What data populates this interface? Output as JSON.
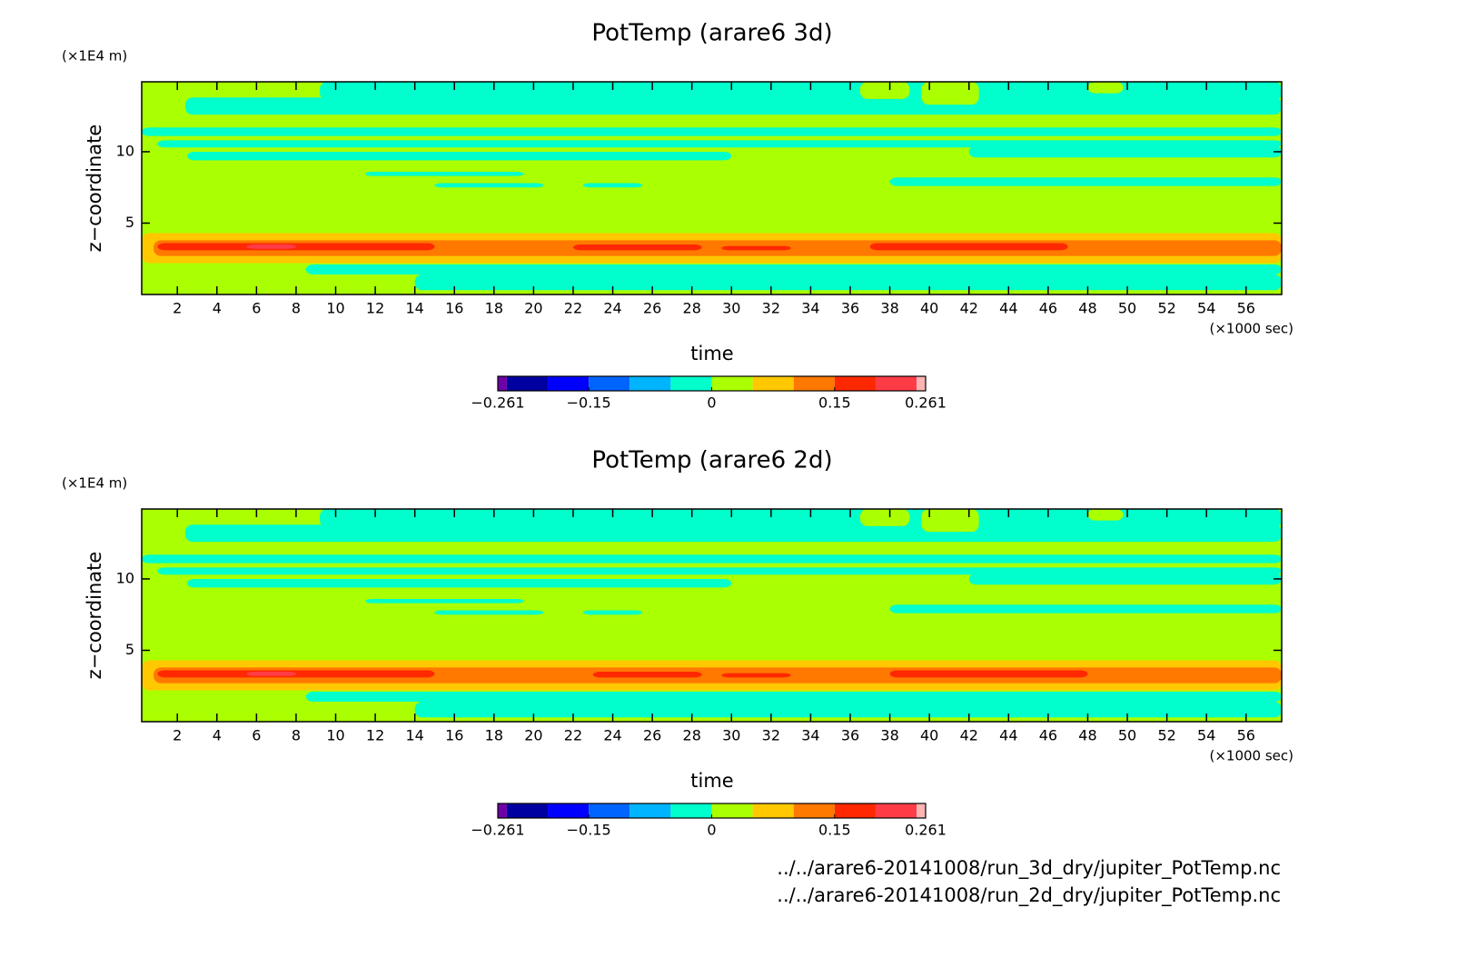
{
  "chart_data": [
    {
      "type": "contour",
      "title": "PotTemp (arare6 3d)",
      "x_label": "time",
      "y_label": "z−coordinate",
      "x_unit": "(×1000 sec)",
      "y_unit": "(×1E4 m)",
      "xlim": [
        0.2,
        57.8
      ],
      "ylim": [
        0,
        14.9
      ],
      "xticks": [
        2,
        4,
        6,
        8,
        10,
        12,
        14,
        16,
        18,
        20,
        22,
        24,
        26,
        28,
        30,
        32,
        34,
        36,
        38,
        40,
        42,
        44,
        46,
        48,
        50,
        52,
        54,
        56
      ],
      "yticks": [
        5,
        10
      ],
      "background_value": 0.025,
      "colorbar": {
        "bounds": [
          -0.261,
          -0.25,
          -0.2,
          -0.15,
          -0.1,
          -0.05,
          0,
          0.05,
          0.1,
          0.15,
          0.2,
          0.25,
          0.261
        ],
        "colors": [
          "#7000a8",
          "#0000a0",
          "#0000ff",
          "#0064ff",
          "#00b4ff",
          "#00ffcc",
          "#aaff00",
          "#ffc800",
          "#ff7800",
          "#ff2800",
          "#ff3c46",
          "#ffb4b4"
        ],
        "ticks": [
          {
            "value": -0.261,
            "label": "−0.261"
          },
          {
            "value": -0.15,
            "label": "−0.15"
          },
          0,
          0.15,
          0.261
        ]
      },
      "regions": [
        {
          "x": [
            2.4,
            57.8
          ],
          "y": [
            12.6,
            13.8
          ],
          "value": -0.025
        },
        {
          "x": [
            9.2,
            57.8
          ],
          "y": [
            13.6,
            14.9
          ],
          "value": -0.025
        },
        {
          "x": [
            36.5,
            39
          ],
          "y": [
            13.7,
            14.9
          ],
          "value": 0.025
        },
        {
          "x": [
            39.6,
            42.5
          ],
          "y": [
            13.3,
            14.9
          ],
          "value": 0.025
        },
        {
          "x": [
            48,
            49.8
          ],
          "y": [
            14.1,
            14.9
          ],
          "value": 0.025
        },
        {
          "x": [
            0.2,
            57.8
          ],
          "y": [
            11.1,
            11.7
          ],
          "value": -0.025
        },
        {
          "x": [
            1,
            57.8
          ],
          "y": [
            10.3,
            10.8
          ],
          "value": -0.025
        },
        {
          "x": [
            2.5,
            30
          ],
          "y": [
            9.4,
            10
          ],
          "value": -0.025
        },
        {
          "x": [
            42,
            57.8
          ],
          "y": [
            9.6,
            10.4
          ],
          "value": -0.025
        },
        {
          "x": [
            11.5,
            19.5
          ],
          "y": [
            8.3,
            8.6
          ],
          "value": -0.025
        },
        {
          "x": [
            15,
            20.5
          ],
          "y": [
            7.5,
            7.8
          ],
          "value": -0.025
        },
        {
          "x": [
            22.5,
            25.5
          ],
          "y": [
            7.5,
            7.8
          ],
          "value": -0.025
        },
        {
          "x": [
            38,
            57.8
          ],
          "y": [
            7.6,
            8.2
          ],
          "value": -0.025
        },
        {
          "x": [
            0.2,
            57.8
          ],
          "y": [
            2.2,
            4.3
          ],
          "value": 0.075
        },
        {
          "x": [
            0.8,
            57.8
          ],
          "y": [
            2.7,
            3.8
          ],
          "value": 0.125
        },
        {
          "x": [
            1,
            15
          ],
          "y": [
            3.1,
            3.6
          ],
          "value": 0.175
        },
        {
          "x": [
            22,
            28.5
          ],
          "y": [
            3.1,
            3.5
          ],
          "value": 0.175
        },
        {
          "x": [
            29.5,
            33
          ],
          "y": [
            3.1,
            3.4
          ],
          "value": 0.175
        },
        {
          "x": [
            37,
            47
          ],
          "y": [
            3.1,
            3.6
          ],
          "value": 0.175
        },
        {
          "x": [
            5.5,
            8
          ],
          "y": [
            3.2,
            3.5
          ],
          "value": 0.225
        },
        {
          "x": [
            8.5,
            57.8
          ],
          "y": [
            1.4,
            2.1
          ],
          "value": -0.025
        },
        {
          "x": [
            14,
            57.8
          ],
          "y": [
            0.3,
            1.4
          ],
          "value": -0.025
        }
      ]
    },
    {
      "type": "contour",
      "title": "PotTemp (arare6 2d)",
      "x_label": "time",
      "y_label": "z−coordinate",
      "x_unit": "(×1000 sec)",
      "y_unit": "(×1E4 m)",
      "xlim": [
        0.2,
        57.8
      ],
      "ylim": [
        0,
        14.9
      ],
      "xticks": [
        2,
        4,
        6,
        8,
        10,
        12,
        14,
        16,
        18,
        20,
        22,
        24,
        26,
        28,
        30,
        32,
        34,
        36,
        38,
        40,
        42,
        44,
        46,
        48,
        50,
        52,
        54,
        56
      ],
      "yticks": [
        5,
        10
      ],
      "background_value": 0.025,
      "colorbar": {
        "bounds": [
          -0.261,
          -0.25,
          -0.2,
          -0.15,
          -0.1,
          -0.05,
          0,
          0.05,
          0.1,
          0.15,
          0.2,
          0.25,
          0.261
        ],
        "colors": [
          "#7000a8",
          "#0000a0",
          "#0000ff",
          "#0064ff",
          "#00b4ff",
          "#00ffcc",
          "#aaff00",
          "#ffc800",
          "#ff7800",
          "#ff2800",
          "#ff3c46",
          "#ffb4b4"
        ],
        "ticks": [
          {
            "value": -0.261,
            "label": "−0.261"
          },
          {
            "value": -0.15,
            "label": "−0.15"
          },
          0,
          0.15,
          0.261
        ]
      },
      "regions": [
        {
          "x": [
            2.4,
            57.8
          ],
          "y": [
            12.6,
            13.8
          ],
          "value": -0.025
        },
        {
          "x": [
            9.2,
            57.8
          ],
          "y": [
            13.6,
            14.9
          ],
          "value": -0.025
        },
        {
          "x": [
            36.5,
            39
          ],
          "y": [
            13.7,
            14.9
          ],
          "value": 0.025
        },
        {
          "x": [
            39.6,
            42.5
          ],
          "y": [
            13.3,
            14.9
          ],
          "value": 0.025
        },
        {
          "x": [
            48,
            49.8
          ],
          "y": [
            14.1,
            14.9
          ],
          "value": 0.025
        },
        {
          "x": [
            0.2,
            57.8
          ],
          "y": [
            11.1,
            11.7
          ],
          "value": -0.025
        },
        {
          "x": [
            1,
            57.8
          ],
          "y": [
            10.3,
            10.8
          ],
          "value": -0.025
        },
        {
          "x": [
            2.5,
            30
          ],
          "y": [
            9.4,
            10
          ],
          "value": -0.025
        },
        {
          "x": [
            42,
            57.8
          ],
          "y": [
            9.6,
            10.4
          ],
          "value": -0.025
        },
        {
          "x": [
            11.5,
            19.5
          ],
          "y": [
            8.3,
            8.6
          ],
          "value": -0.025
        },
        {
          "x": [
            15,
            20.5
          ],
          "y": [
            7.5,
            7.8
          ],
          "value": -0.025
        },
        {
          "x": [
            22.5,
            25.5
          ],
          "y": [
            7.5,
            7.8
          ],
          "value": -0.025
        },
        {
          "x": [
            38,
            57.8
          ],
          "y": [
            7.6,
            8.2
          ],
          "value": -0.025
        },
        {
          "x": [
            0.2,
            57.8
          ],
          "y": [
            2.2,
            4.3
          ],
          "value": 0.075
        },
        {
          "x": [
            0.8,
            57.8
          ],
          "y": [
            2.7,
            3.8
          ],
          "value": 0.125
        },
        {
          "x": [
            1,
            15
          ],
          "y": [
            3.1,
            3.6
          ],
          "value": 0.175
        },
        {
          "x": [
            23,
            28.5
          ],
          "y": [
            3.1,
            3.5
          ],
          "value": 0.175
        },
        {
          "x": [
            29.5,
            33
          ],
          "y": [
            3.1,
            3.4
          ],
          "value": 0.175
        },
        {
          "x": [
            38,
            48
          ],
          "y": [
            3.1,
            3.6
          ],
          "value": 0.175
        },
        {
          "x": [
            5.5,
            8
          ],
          "y": [
            3.2,
            3.5
          ],
          "value": 0.225
        },
        {
          "x": [
            8.5,
            57.8
          ],
          "y": [
            1.4,
            2.1
          ],
          "value": -0.025
        },
        {
          "x": [
            14,
            57.8
          ],
          "y": [
            0.3,
            1.4
          ],
          "value": -0.025
        }
      ]
    }
  ],
  "files": [
    "../../arare6-20141008/run_3d_dry/jupiter_PotTemp.nc",
    "../../arare6-20141008/run_2d_dry/jupiter_PotTemp.nc"
  ]
}
